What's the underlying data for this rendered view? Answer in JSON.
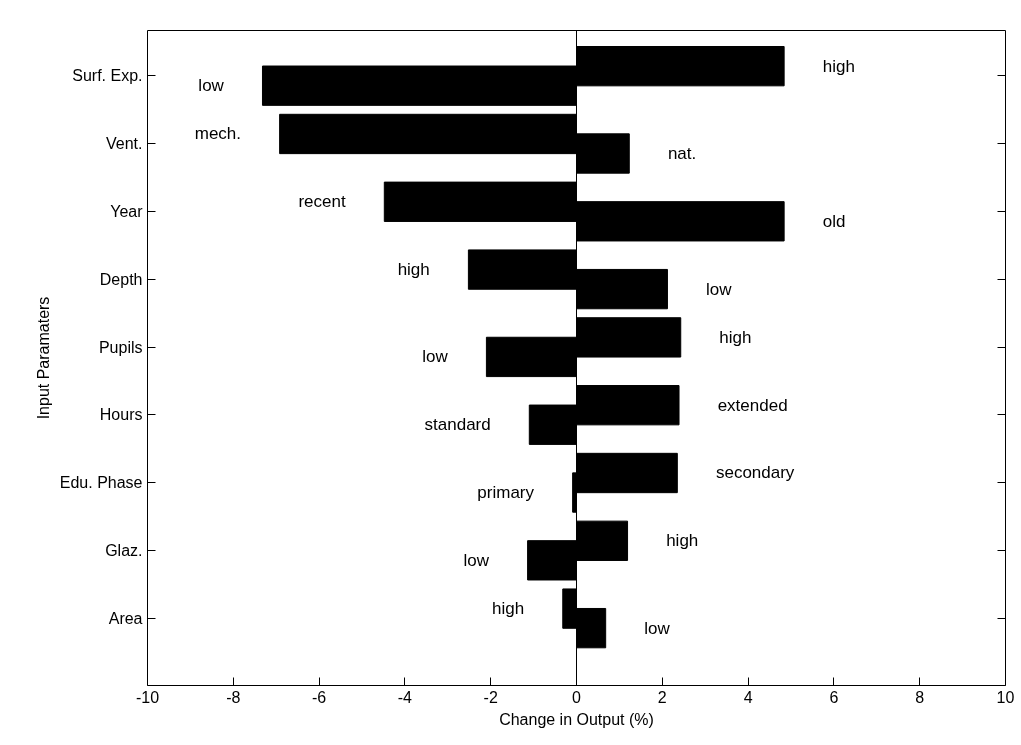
{
  "chart_data": {
    "type": "bar",
    "orientation": "horizontal",
    "xlabel": "Change in Output (%)",
    "ylabel": "Input Paramaters",
    "categories": [
      "Surf. Exp.",
      "Vent.",
      "Year",
      "Depth",
      "Pupils",
      "Hours",
      "Edu. Phase",
      "Glaz.",
      "Area"
    ],
    "series": [
      {
        "color": "#000000",
        "values": [
          4.84,
          -6.92,
          -4.48,
          -2.52,
          2.43,
          2.39,
          2.35,
          1.19,
          -0.32
        ],
        "value_labels": [
          "high",
          "mech.",
          "recent",
          "high",
          "high",
          "extended",
          "secondary",
          "high",
          "high"
        ]
      },
      {
        "color": "#000000",
        "values": [
          -7.32,
          1.23,
          4.84,
          2.12,
          -2.1,
          -1.1,
          -0.09,
          -1.14,
          0.68
        ],
        "value_labels": [
          "low",
          "nat.",
          "old",
          "low",
          "low",
          "standard",
          "primary",
          "low",
          "low"
        ]
      }
    ],
    "xlim": [
      -10,
      10
    ],
    "xticks": [
      -10,
      -8,
      -6,
      -4,
      -2,
      0,
      2,
      4,
      6,
      8,
      10
    ],
    "ref_lines": [
      {
        "axis": "x",
        "value": 0,
        "color": "#000000"
      }
    ],
    "grid": false
  }
}
